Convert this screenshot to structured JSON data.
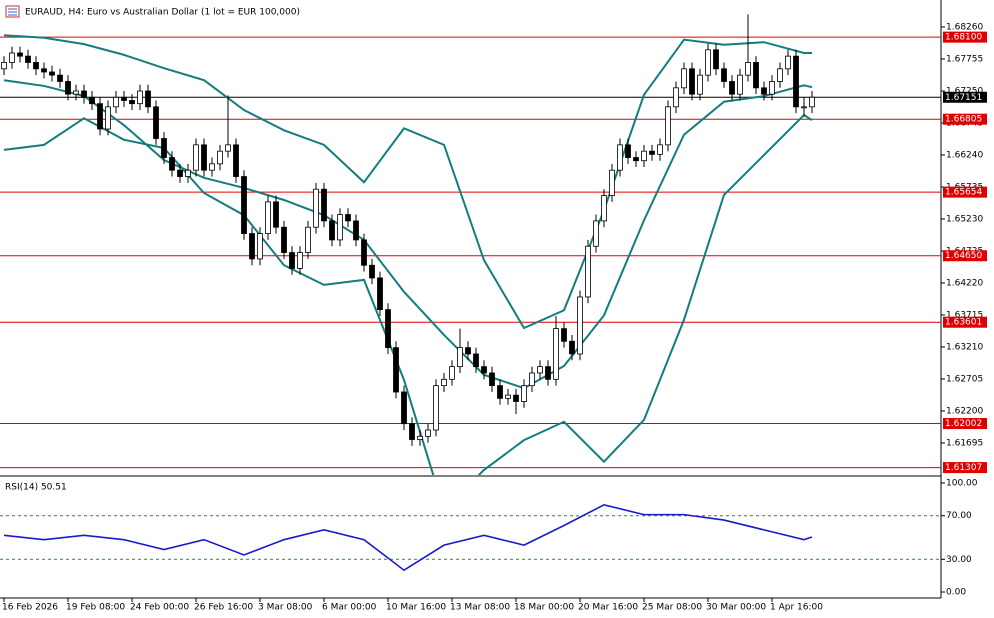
{
  "chart_data": [
    {
      "type": "candlestick",
      "title": "EURAUD, H4:  Euro vs Australian Dollar (1 lot = EUR 100,000)",
      "categories": [
        "16 Feb 2026",
        null,
        null,
        null,
        null,
        null,
        null,
        null,
        "19 Feb 08:00",
        null,
        null,
        null,
        null,
        null,
        null,
        null,
        "24 Feb 00:00",
        null,
        null,
        null,
        null,
        null,
        null,
        null,
        "26 Feb 16:00",
        null,
        null,
        null,
        null,
        null,
        null,
        null,
        "3 Mar 08:00",
        null,
        null,
        null,
        null,
        null,
        null,
        null,
        "6 Mar 00:00",
        null,
        null,
        null,
        null,
        null,
        null,
        null,
        "10 Mar 16:00",
        null,
        null,
        null,
        null,
        null,
        null,
        null,
        "13 Mar 08:00",
        null,
        null,
        null,
        null,
        null,
        null,
        null,
        "18 Mar 00:00",
        null,
        null,
        null,
        null,
        null,
        null,
        null,
        "20 Mar 16:00",
        null,
        null,
        null,
        null,
        null,
        null,
        null,
        "25 Mar 08:00",
        null,
        null,
        null,
        null,
        null,
        null,
        null,
        "30 Mar 00:00",
        null,
        null,
        null,
        null,
        null,
        null,
        null,
        "1 Apr 16:00",
        null,
        null,
        null,
        null,
        null
      ],
      "open": [
        1.676,
        1.677,
        1.6785,
        1.678,
        1.677,
        1.676,
        1.6755,
        1.675,
        1.674,
        1.672,
        1.6725,
        1.6715,
        1.6705,
        1.6665,
        1.67,
        1.6715,
        1.671,
        1.6705,
        1.6725,
        1.67,
        1.665,
        1.662,
        1.66,
        1.659,
        1.66,
        1.664,
        1.66,
        1.661,
        1.663,
        1.664,
        1.659,
        1.65,
        1.646,
        1.65,
        1.655,
        1.651,
        1.647,
        1.6445,
        1.647,
        1.651,
        1.657,
        1.652,
        1.649,
        1.653,
        1.652,
        1.649,
        1.645,
        1.643,
        1.638,
        1.632,
        1.625,
        1.62,
        1.6175,
        1.618,
        1.619,
        1.626,
        1.627,
        1.629,
        1.632,
        1.631,
        1.629,
        1.628,
        1.626,
        1.624,
        1.6245,
        1.6235,
        1.626,
        1.628,
        1.629,
        1.627,
        1.635,
        1.633,
        1.631,
        1.64,
        1.648,
        1.652,
        1.656,
        1.66,
        1.664,
        1.662,
        1.6615,
        1.663,
        1.6625,
        1.664,
        1.67,
        1.673,
        1.676,
        1.672,
        1.675,
        1.679,
        1.676,
        1.674,
        1.672,
        1.675,
        1.677,
        1.673,
        1.672,
        1.674,
        1.676,
        1.678,
        1.67,
        1.67
      ],
      "high": [
        1.678,
        1.6795,
        1.6795,
        1.679,
        1.678,
        1.677,
        1.6765,
        1.676,
        1.675,
        1.6735,
        1.6735,
        1.6725,
        1.6715,
        1.671,
        1.6725,
        1.6725,
        1.672,
        1.6735,
        1.6735,
        1.671,
        1.666,
        1.663,
        1.661,
        1.661,
        1.665,
        1.665,
        1.662,
        1.664,
        1.6718,
        1.665,
        1.66,
        1.651,
        1.651,
        1.656,
        1.656,
        1.652,
        1.648,
        1.648,
        1.652,
        1.658,
        1.658,
        1.653,
        1.654,
        1.654,
        1.653,
        1.65,
        1.646,
        1.644,
        1.639,
        1.633,
        1.626,
        1.621,
        1.619,
        1.62,
        1.627,
        1.628,
        1.63,
        1.635,
        1.633,
        1.632,
        1.63,
        1.629,
        1.627,
        1.6255,
        1.6255,
        1.627,
        1.629,
        1.63,
        1.63,
        1.637,
        1.636,
        1.634,
        1.641,
        1.649,
        1.653,
        1.657,
        1.661,
        1.665,
        1.665,
        1.663,
        1.664,
        1.664,
        1.665,
        1.671,
        1.674,
        1.677,
        1.677,
        1.676,
        1.68,
        1.68,
        1.677,
        1.675,
        1.676,
        1.6846,
        1.678,
        1.674,
        1.675,
        1.677,
        1.679,
        1.679,
        1.6715,
        1.6725
      ],
      "low": [
        1.675,
        1.676,
        1.677,
        1.676,
        1.675,
        1.6745,
        1.674,
        1.673,
        1.671,
        1.671,
        1.6705,
        1.6695,
        1.6655,
        1.6655,
        1.669,
        1.67,
        1.6695,
        1.6695,
        1.669,
        1.664,
        1.661,
        1.659,
        1.658,
        1.658,
        1.659,
        1.659,
        1.659,
        1.66,
        1.662,
        1.658,
        1.649,
        1.645,
        1.645,
        1.649,
        1.65,
        1.646,
        1.6435,
        1.6435,
        1.646,
        1.65,
        1.651,
        1.648,
        1.648,
        1.651,
        1.648,
        1.644,
        1.642,
        1.637,
        1.631,
        1.624,
        1.619,
        1.6165,
        1.6165,
        1.617,
        1.618,
        1.625,
        1.626,
        1.628,
        1.63,
        1.628,
        1.627,
        1.625,
        1.623,
        1.623,
        1.6215,
        1.6225,
        1.625,
        1.627,
        1.626,
        1.626,
        1.632,
        1.63,
        1.63,
        1.639,
        1.647,
        1.651,
        1.655,
        1.659,
        1.661,
        1.6605,
        1.6605,
        1.6615,
        1.6615,
        1.663,
        1.669,
        1.672,
        1.671,
        1.671,
        1.674,
        1.675,
        1.673,
        1.671,
        1.671,
        1.674,
        1.672,
        1.671,
        1.671,
        1.673,
        1.675,
        1.669,
        1.6685,
        1.669
      ],
      "close": [
        1.677,
        1.6785,
        1.678,
        1.677,
        1.676,
        1.6755,
        1.675,
        1.674,
        1.672,
        1.6725,
        1.6715,
        1.6705,
        1.6665,
        1.67,
        1.6715,
        1.671,
        1.6705,
        1.6725,
        1.67,
        1.665,
        1.662,
        1.66,
        1.659,
        1.66,
        1.664,
        1.66,
        1.661,
        1.663,
        1.664,
        1.659,
        1.65,
        1.646,
        1.65,
        1.655,
        1.651,
        1.647,
        1.6445,
        1.647,
        1.651,
        1.657,
        1.652,
        1.649,
        1.653,
        1.652,
        1.649,
        1.645,
        1.643,
        1.638,
        1.632,
        1.625,
        1.62,
        1.6175,
        1.618,
        1.619,
        1.626,
        1.627,
        1.629,
        1.632,
        1.631,
        1.629,
        1.628,
        1.626,
        1.624,
        1.6245,
        1.6235,
        1.626,
        1.628,
        1.629,
        1.627,
        1.635,
        1.633,
        1.631,
        1.64,
        1.648,
        1.652,
        1.656,
        1.66,
        1.664,
        1.662,
        1.6615,
        1.663,
        1.6625,
        1.664,
        1.67,
        1.673,
        1.676,
        1.672,
        1.675,
        1.679,
        1.676,
        1.674,
        1.672,
        1.675,
        1.677,
        1.673,
        1.672,
        1.674,
        1.676,
        1.678,
        1.67,
        1.67,
        1.67151
      ],
      "bull_color": "#ffffff",
      "bear_color": "#000000",
      "bands": [
        {
          "color": "#127d7d",
          "x": [
            0,
            5,
            10,
            15,
            20,
            25,
            30,
            35,
            40,
            45,
            50,
            55,
            60,
            65,
            70,
            75,
            80,
            85,
            90,
            95,
            100,
            101
          ],
          "values": [
            1.6813,
            1.6809,
            1.6799,
            1.6782,
            1.6761,
            1.6742,
            1.6695,
            1.6663,
            1.664,
            1.6581,
            1.6666,
            1.664,
            1.6458,
            1.6351,
            1.6379,
            1.6537,
            1.6719,
            1.6806,
            1.6798,
            1.6802,
            1.6785,
            1.6785
          ]
        },
        {
          "color": "#127d7d",
          "x": [
            0,
            5,
            10,
            15,
            20,
            25,
            30,
            35,
            40,
            45,
            50,
            55,
            60,
            65,
            70,
            75,
            80,
            85,
            90,
            95,
            100,
            101
          ],
          "values": [
            1.6742,
            1.6733,
            1.6717,
            1.6671,
            1.6616,
            1.6588,
            1.6572,
            1.6553,
            1.6529,
            1.649,
            1.6408,
            1.634,
            1.6277,
            1.6256,
            1.6291,
            1.6371,
            1.6521,
            1.6656,
            1.6708,
            1.6717,
            1.6734,
            1.6731
          ]
        },
        {
          "color": "#127d7d",
          "x": [
            0,
            5,
            10,
            15,
            20,
            25,
            30,
            35,
            40,
            45,
            50,
            55,
            60,
            65,
            70,
            75,
            80,
            85,
            90,
            95,
            100,
            101
          ],
          "values": [
            1.6632,
            1.664,
            1.6682,
            1.6648,
            1.6635,
            1.6564,
            1.6529,
            1.645,
            1.6419,
            1.6427,
            1.6269,
            1.6064,
            1.6127,
            1.6174,
            1.6203,
            1.614,
            1.6206,
            1.6364,
            1.6561,
            1.6624,
            1.6687,
            1.6679
          ]
        }
      ],
      "levels": {
        "color": "#e00000",
        "values": [
          1.681,
          1.66805,
          1.65654,
          1.6465,
          1.63601,
          1.62002,
          1.61307
        ],
        "value_labels": [
          "1.68100",
          "1.66805",
          "1.65654",
          "1.64650",
          "1.63601",
          "1.62002",
          "1.61307"
        ]
      },
      "current": {
        "value": 1.67151,
        "label": "1.67151"
      },
      "ylim": [
        1.6119,
        1.68607
      ],
      "yticks": [
        {
          "value": 1.6826,
          "label": "1.68260"
        },
        {
          "value": 1.67755,
          "label": "1.67755"
        },
        {
          "value": 1.6725,
          "label": "1.67250"
        },
        {
          "value": 1.66745,
          "label": "1.66745"
        },
        {
          "value": 1.6624,
          "label": "1.66240"
        },
        {
          "value": 1.65735,
          "label": "1.65735"
        },
        {
          "value": 1.6523,
          "label": "1.65230"
        },
        {
          "value": 1.64725,
          "label": "1.64725"
        },
        {
          "value": 1.6422,
          "label": "1.64220"
        },
        {
          "value": 1.63715,
          "label": "1.63715"
        },
        {
          "value": 1.6321,
          "label": "1.63210"
        },
        {
          "value": 1.62705,
          "label": "1.62705"
        },
        {
          "value": 1.622,
          "label": "1.62200"
        },
        {
          "value": 1.61695,
          "label": "1.61695"
        }
      ]
    },
    {
      "type": "line",
      "title": "RSI(14) 50.51",
      "color": "#1a1acc",
      "x": [
        0,
        5,
        10,
        15,
        20,
        25,
        30,
        35,
        40,
        45,
        50,
        55,
        60,
        65,
        70,
        75,
        80,
        85,
        90,
        95,
        100,
        101
      ],
      "values": [
        52,
        48,
        52,
        48,
        39,
        48,
        34,
        48,
        57,
        48,
        20,
        43,
        52,
        43,
        61,
        80,
        71,
        71,
        66,
        57,
        48,
        50.51
      ],
      "levels": [
        70,
        30
      ],
      "ylim": [
        -5.5,
        104.6
      ],
      "yticks": [
        {
          "value": 100,
          "label": "100.00"
        },
        {
          "value": 70,
          "label": "70.00"
        },
        {
          "value": 30,
          "label": "30.00"
        },
        {
          "value": 0,
          "label": "0.00"
        }
      ]
    }
  ]
}
